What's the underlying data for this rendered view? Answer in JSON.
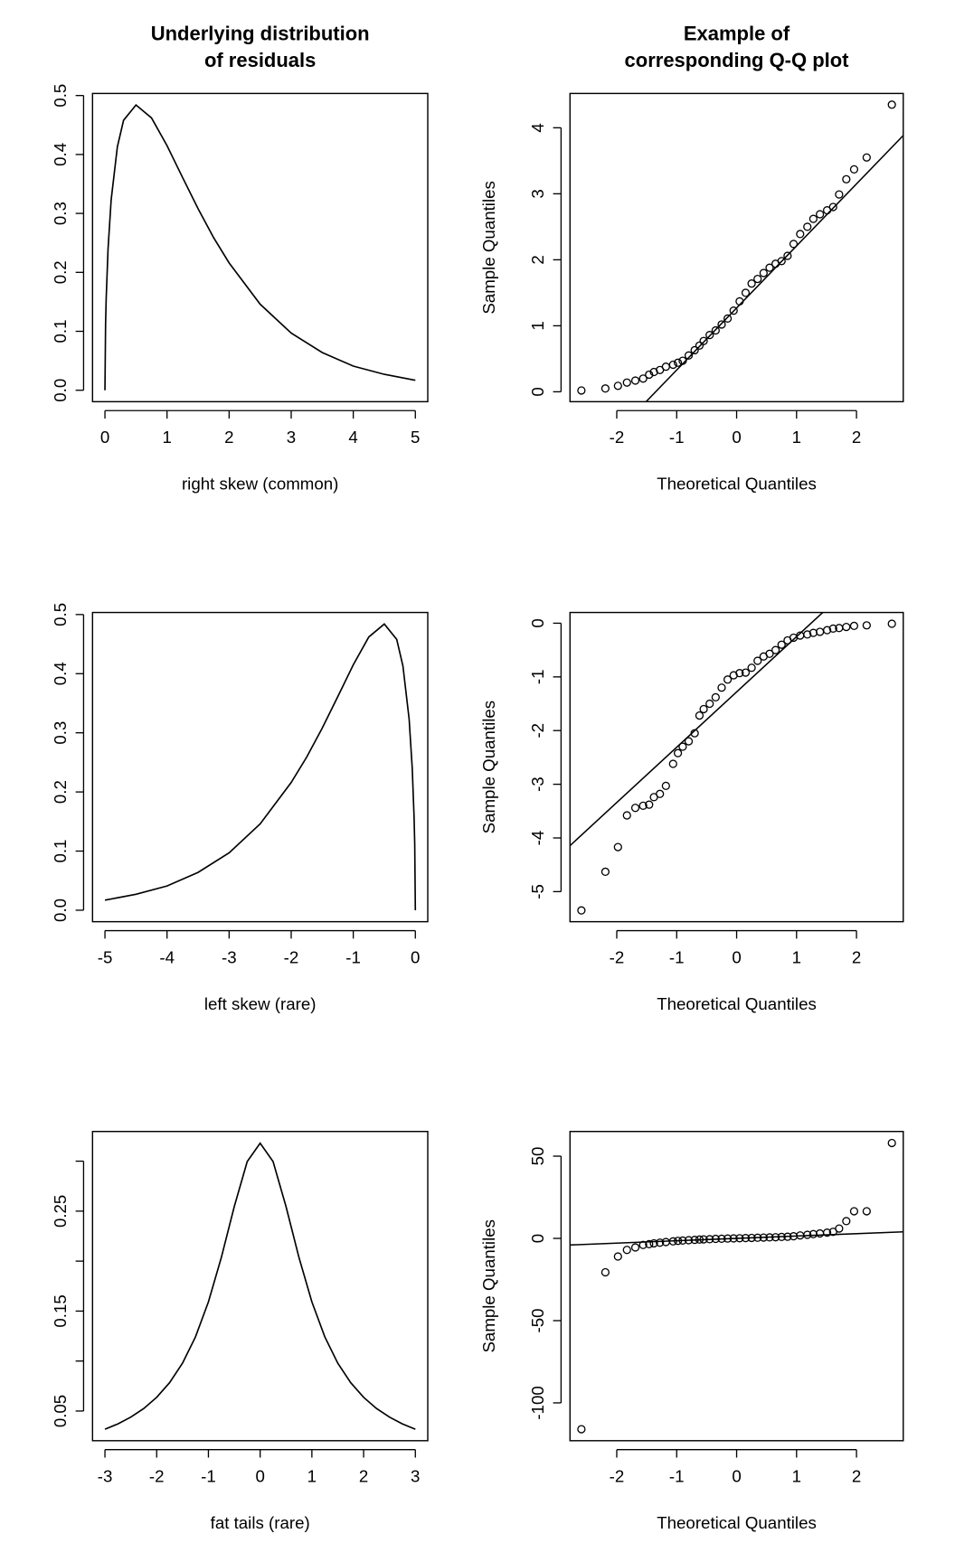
{
  "chart_data": [
    {
      "type": "line",
      "title": [
        "Underlying distribution",
        "of residuals"
      ],
      "xlabel": "right skew (common)",
      "x": [
        0,
        0.01,
        0.02,
        0.05,
        0.1,
        0.2,
        0.3,
        0.5,
        0.75,
        1,
        1.25,
        1.5,
        1.75,
        2,
        2.5,
        3,
        3.5,
        4,
        4.5,
        5
      ],
      "values": [
        0,
        0.112,
        0.156,
        0.24,
        0.323,
        0.413,
        0.458,
        0.484,
        0.462,
        0.415,
        0.361,
        0.308,
        0.259,
        0.216,
        0.146,
        0.097,
        0.064,
        0.041,
        0.027,
        0.017
      ],
      "color": "#000000",
      "xlim": [
        -0.2,
        5.2
      ],
      "xticks": [
        0,
        1,
        2,
        3,
        4,
        5
      ],
      "ylim": [
        -0.0194,
        0.5035
      ],
      "yticks": [
        {
          "value": 0,
          "label": "0.0"
        },
        0.1,
        0.2,
        0.3,
        0.4,
        0.5
      ]
    },
    {
      "type": "scatter",
      "title": [
        "Example of",
        "corresponding Q-Q plot"
      ],
      "xlabel": "Theoretical Quantiles",
      "ylabel": "Sample Quantiles",
      "x": [
        -2.59,
        -2.19,
        -1.98,
        -1.83,
        -1.69,
        -1.56,
        -1.46,
        -1.38,
        -1.28,
        -1.18,
        -1.06,
        -0.98,
        -0.9,
        -0.8,
        -0.7,
        -0.62,
        -0.55,
        -0.45,
        -0.35,
        -0.25,
        -0.15,
        -0.05,
        0.05,
        0.15,
        0.25,
        0.35,
        0.45,
        0.55,
        0.65,
        0.75,
        0.85,
        0.95,
        1.06,
        1.18,
        1.28,
        1.39,
        1.51,
        1.61,
        1.71,
        1.83,
        1.96,
        2.17,
        2.59
      ],
      "values": [
        0.02,
        0.05,
        0.09,
        0.14,
        0.17,
        0.2,
        0.26,
        0.3,
        0.33,
        0.38,
        0.41,
        0.44,
        0.47,
        0.55,
        0.63,
        0.7,
        0.77,
        0.86,
        0.93,
        1.02,
        1.11,
        1.23,
        1.37,
        1.5,
        1.64,
        1.71,
        1.8,
        1.88,
        1.94,
        1.98,
        2.06,
        2.24,
        2.39,
        2.5,
        2.62,
        2.69,
        2.75,
        2.8,
        2.99,
        3.22,
        3.37,
        3.55,
        4.35
      ],
      "line": {
        "intercept": 1.27,
        "slope": 0.94
      },
      "color": "#000000",
      "xlim": [
        -2.78,
        2.78
      ],
      "xticks": [
        -2,
        -1,
        0,
        1,
        2
      ],
      "ylim": [
        -0.15,
        4.52
      ],
      "yticks": [
        0,
        1,
        2,
        3,
        4
      ]
    },
    {
      "type": "line",
      "xlabel": "left skew (rare)",
      "x": [
        -5,
        -4.5,
        -4,
        -3.5,
        -3,
        -2.5,
        -2,
        -1.75,
        -1.5,
        -1.25,
        -1,
        -0.75,
        -0.5,
        -0.3,
        -0.2,
        -0.1,
        -0.05,
        -0.02,
        -0.01,
        0
      ],
      "values": [
        0.017,
        0.027,
        0.041,
        0.064,
        0.097,
        0.146,
        0.216,
        0.259,
        0.308,
        0.361,
        0.415,
        0.462,
        0.484,
        0.458,
        0.413,
        0.323,
        0.24,
        0.156,
        0.112,
        0
      ],
      "color": "#000000",
      "xlim": [
        -5.2,
        0.2
      ],
      "xticks": [
        -5,
        -4,
        -3,
        -2,
        -1,
        0
      ],
      "ylim": [
        -0.0194,
        0.5035
      ],
      "yticks": [
        {
          "value": 0,
          "label": "0.0"
        },
        0.1,
        0.2,
        0.3,
        0.4,
        0.5
      ]
    },
    {
      "type": "scatter",
      "xlabel": "Theoretical Quantiles",
      "ylabel": "Sample Quantiles",
      "x": [
        -2.59,
        -2.19,
        -1.98,
        -1.83,
        -1.69,
        -1.56,
        -1.46,
        -1.38,
        -1.28,
        -1.18,
        -1.06,
        -0.98,
        -0.9,
        -0.8,
        -0.7,
        -0.62,
        -0.55,
        -0.45,
        -0.35,
        -0.25,
        -0.15,
        -0.05,
        0.05,
        0.15,
        0.25,
        0.35,
        0.45,
        0.55,
        0.65,
        0.75,
        0.85,
        0.95,
        1.06,
        1.18,
        1.28,
        1.39,
        1.51,
        1.61,
        1.71,
        1.83,
        1.96,
        2.17,
        2.59
      ],
      "values": [
        -5.35,
        -4.63,
        -4.17,
        -3.58,
        -3.44,
        -3.4,
        -3.38,
        -3.24,
        -3.18,
        -3.03,
        -2.62,
        -2.42,
        -2.3,
        -2.2,
        -2.05,
        -1.72,
        -1.6,
        -1.5,
        -1.38,
        -1.2,
        -1.05,
        -0.97,
        -0.93,
        -0.92,
        -0.83,
        -0.7,
        -0.62,
        -0.57,
        -0.5,
        -0.4,
        -0.32,
        -0.27,
        -0.23,
        -0.21,
        -0.18,
        -0.16,
        -0.13,
        -0.1,
        -0.09,
        -0.07,
        -0.05,
        -0.04,
        -0.01
      ],
      "line": {
        "intercept": -1.28,
        "slope": 1.03
      },
      "color": "#000000",
      "xlim": [
        -2.78,
        2.78
      ],
      "xticks": [
        -2,
        -1,
        0,
        1,
        2
      ],
      "ylim": [
        -5.56,
        0.2
      ],
      "yticks": [
        -5,
        -4,
        -3,
        -2,
        -1,
        0
      ]
    },
    {
      "type": "line",
      "xlabel": "fat tails (rare)",
      "x": [
        -3,
        -2.75,
        -2.5,
        -2.25,
        -2,
        -1.75,
        -1.5,
        -1.25,
        -1,
        -0.75,
        -0.5,
        -0.25,
        0,
        0.25,
        0.5,
        0.75,
        1,
        1.25,
        1.5,
        1.75,
        2,
        2.25,
        2.5,
        2.75,
        3
      ],
      "values": [
        0.0318,
        0.0371,
        0.0439,
        0.0525,
        0.0637,
        0.0784,
        0.0979,
        0.1242,
        0.1592,
        0.2037,
        0.2546,
        0.2996,
        0.318,
        0.2996,
        0.2546,
        0.2037,
        0.1592,
        0.1242,
        0.0979,
        0.0784,
        0.0637,
        0.0525,
        0.0439,
        0.0371,
        0.0318
      ],
      "color": "#000000",
      "xlim": [
        -3.24,
        3.24
      ],
      "xticks": [
        -3,
        -2,
        -1,
        0,
        1,
        2,
        3
      ],
      "ylim": [
        0.0203,
        0.3297
      ],
      "yticks": [
        0.05,
        0.15,
        0.25
      ],
      "yminorticks": [
        0.1,
        0.2,
        0.3
      ]
    },
    {
      "type": "scatter",
      "xlabel": "Theoretical Quantiles",
      "ylabel": "Sample Quantiles",
      "x": [
        -2.59,
        -2.19,
        -1.98,
        -1.83,
        -1.69,
        -1.56,
        -1.46,
        -1.38,
        -1.28,
        -1.18,
        -1.06,
        -0.98,
        -0.9,
        -0.8,
        -0.7,
        -0.62,
        -0.55,
        -0.45,
        -0.35,
        -0.25,
        -0.15,
        -0.05,
        0.05,
        0.15,
        0.25,
        0.35,
        0.45,
        0.55,
        0.65,
        0.75,
        0.85,
        0.95,
        1.06,
        1.18,
        1.28,
        1.39,
        1.51,
        1.61,
        1.71,
        1.83,
        1.96,
        2.17,
        2.59
      ],
      "values": [
        -116,
        -20.6,
        -11,
        -7,
        -5.5,
        -4,
        -3.5,
        -3,
        -2.6,
        -2.2,
        -1.8,
        -1.5,
        -1.3,
        -1.1,
        -0.9,
        -0.7,
        -0.6,
        -0.5,
        -0.3,
        -0.2,
        -0.1,
        0,
        0.1,
        0.2,
        0.3,
        0.4,
        0.5,
        0.6,
        0.7,
        0.9,
        1,
        1.3,
        1.8,
        2.2,
        2.6,
        3,
        3.5,
        4,
        6,
        10.5,
        16.5,
        16.5,
        58
      ],
      "line": {
        "intercept": 0,
        "slope": 1.44
      },
      "color": "#000000",
      "xlim": [
        -2.78,
        2.78
      ],
      "xticks": [
        -2,
        -1,
        0,
        1,
        2
      ],
      "ylim": [
        -123,
        65
      ],
      "yticks": [
        -100,
        -50,
        0,
        50
      ]
    }
  ]
}
